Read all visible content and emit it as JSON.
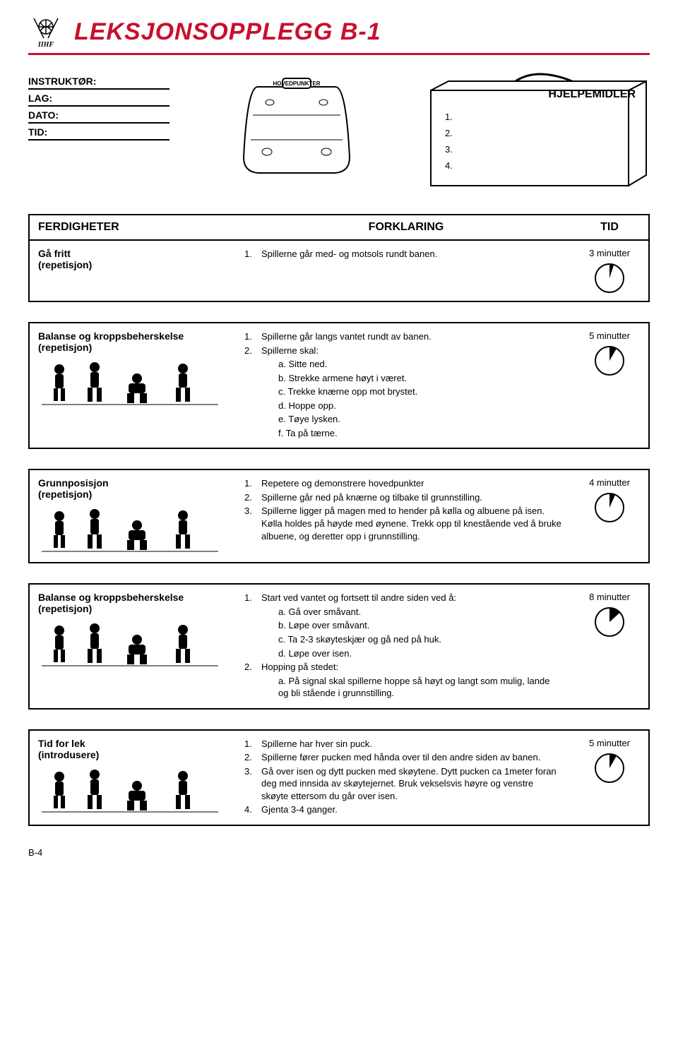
{
  "colors": {
    "accent": "#c8102e",
    "ink": "#000000",
    "bg": "#ffffff"
  },
  "layout": {
    "pageWidth": 960,
    "pageHeight": 1500,
    "gridCols": "300px 1fr 110px"
  },
  "header": {
    "title": "LEKSJONSOPPLEGG B-1",
    "logoText": "IIHF"
  },
  "meta": {
    "fields": [
      "INSTRUKTØR:",
      "LAG:",
      "DATO:",
      "TID:"
    ],
    "hovedpunkter": "HOVEDPUNKTER",
    "hjelpemidler": "HJELPEMIDLER",
    "hjelpeItems": [
      "1.",
      "2.",
      "3.",
      "4."
    ]
  },
  "tableHead": {
    "c1": "FERDIGHETER",
    "c2": "FORKLARING",
    "c3": "TID"
  },
  "rows": [
    {
      "skill": "Gå fritt",
      "sub": "(repetisjon)",
      "lines": [
        {
          "n": "1.",
          "t": "Spillerne går med- og motsols rundt banen."
        }
      ],
      "time": "3 minutter",
      "clockFraction": 0.05,
      "showFigs": false
    },
    {
      "skill": "Balanse og kroppsbeherskelse",
      "sub": "(repetisjon)",
      "lines": [
        {
          "n": "1.",
          "t": "Spillerne går langs vantet rundt av banen."
        },
        {
          "n": "2.",
          "t": "Spillerne skal:"
        },
        {
          "n": "",
          "t": "a. Sitte ned.",
          "sub": true
        },
        {
          "n": "",
          "t": "b. Strekke armene høyt i været.",
          "sub": true
        },
        {
          "n": "",
          "t": "c. Trekke knærne opp mot brystet.",
          "sub": true
        },
        {
          "n": "",
          "t": "d. Hoppe opp.",
          "sub": true
        },
        {
          "n": "",
          "t": "e. Tøye lysken.",
          "sub": true
        },
        {
          "n": "",
          "t": "f. Ta på tærne.",
          "sub": true
        }
      ],
      "time": "5 minutter",
      "clockFraction": 0.083,
      "showFigs": true
    },
    {
      "skill": "Grunnposisjon",
      "sub": "(repetisjon)",
      "lines": [
        {
          "n": "1.",
          "t": "Repetere og demonstrere hovedpunkter"
        },
        {
          "n": "2.",
          "t": "Spillerne går ned på knærne og tilbake til grunnstilling."
        },
        {
          "n": "3.",
          "t": "Spillerne ligger på magen med to hender på kølla og albuene på isen. Kølla holdes på høyde med øynene. Trekk opp til knestående ved å bruke albuene, og deretter opp i grunnstilling."
        }
      ],
      "time": "4 minutter",
      "clockFraction": 0.067,
      "showFigs": true
    },
    {
      "skill": "Balanse og kroppsbeherskelse",
      "sub": "(repetisjon)",
      "lines": [
        {
          "n": "1.",
          "t": "Start ved vantet og fortsett til andre siden ved å:"
        },
        {
          "n": "",
          "t": "a. Gå over småvant.",
          "sub": true
        },
        {
          "n": "",
          "t": "b. Løpe over småvant.",
          "sub": true
        },
        {
          "n": "",
          "t": "c. Ta 2-3 skøyteskjær og gå ned på huk.",
          "sub": true
        },
        {
          "n": "",
          "t": "d. Løpe over isen.",
          "sub": true
        },
        {
          "n": "2.",
          "t": "Hopping på stedet:"
        },
        {
          "n": "",
          "t": "a. På signal skal spillerne hoppe så høyt og langt som mulig, lande og bli stående i grunnstilling.",
          "sub": true
        }
      ],
      "time": "8 minutter",
      "clockFraction": 0.133,
      "showFigs": true
    },
    {
      "skill": "Tid for lek",
      "sub": "(introdusere)",
      "lines": [
        {
          "n": "1.",
          "t": "Spillerne har hver sin puck."
        },
        {
          "n": "2.",
          "t": "Spillerne fører pucken med hånda over til  den andre siden av banen."
        },
        {
          "n": "3.",
          "t": "Gå over isen og dytt pucken med skøytene. Dytt pucken ca 1meter foran deg med innsida av skøytejernet. Bruk vekselsvis høyre og venstre skøyte ettersom du går over isen."
        },
        {
          "n": "4.",
          "t": "Gjenta 3-4 ganger."
        }
      ],
      "time": "5 minutter",
      "clockFraction": 0.083,
      "showFigs": true
    }
  ],
  "footer": "B-4"
}
